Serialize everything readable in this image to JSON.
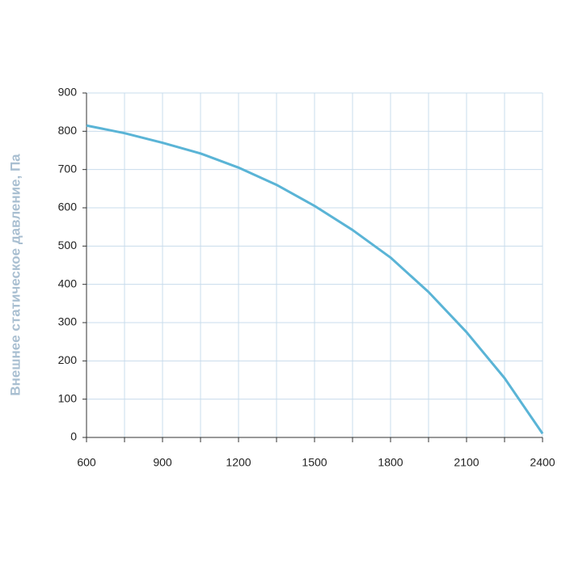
{
  "chart_data": {
    "type": "line",
    "y_label": "Внешнее статическое давление, Па",
    "x": [
      600,
      750,
      900,
      1050,
      1200,
      1350,
      1500,
      1650,
      1800,
      1950,
      2100,
      2250,
      2400
    ],
    "series": [
      {
        "color": "#5ab4d6",
        "values": [
          815,
          795,
          770,
          742,
          705,
          660,
          605,
          542,
          470,
          380,
          275,
          155,
          10
        ]
      }
    ],
    "xlim": [
      600,
      2400
    ],
    "xticks": [
      600,
      900,
      1200,
      1500,
      1800,
      2100,
      2400
    ],
    "x_minor_ticks": [
      750,
      1050,
      1350,
      1650,
      1950,
      2250
    ],
    "ylim": [
      0,
      900
    ],
    "yticks": [
      0,
      100,
      200,
      300,
      400,
      500,
      600,
      700,
      800,
      900
    ],
    "grid": true,
    "grid_color": "#c8dcec",
    "y_label_color": "#a9bfd1"
  }
}
